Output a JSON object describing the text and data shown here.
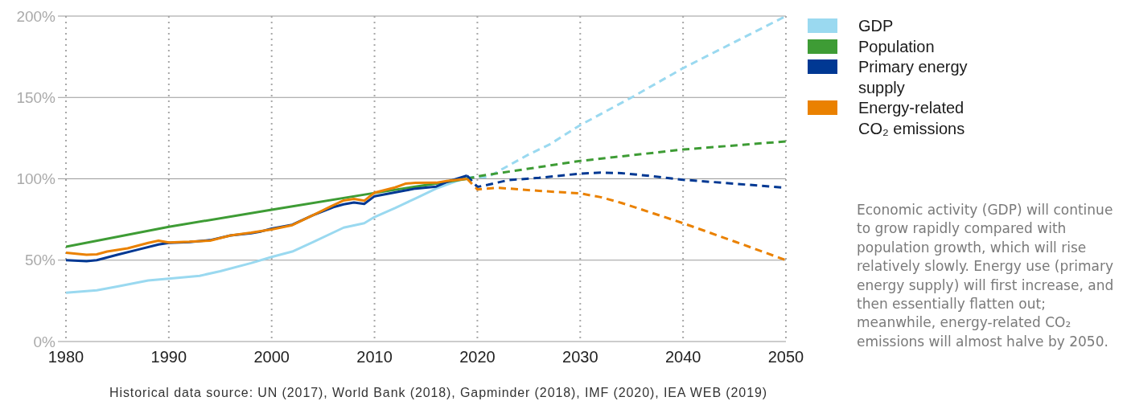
{
  "chart_data": {
    "type": "line",
    "xlim": [
      1980,
      2050
    ],
    "xticks": [
      1980,
      1990,
      2000,
      2010,
      2020,
      2030,
      2040,
      2050
    ],
    "ylim": [
      0,
      200
    ],
    "yticks": [
      {
        "value": 0,
        "label": "0%"
      },
      {
        "value": 50,
        "label": "50%"
      },
      {
        "value": 100,
        "label": "100%"
      },
      {
        "value": 150,
        "label": "150%"
      },
      {
        "value": 200,
        "label": "200%"
      }
    ],
    "grid": true,
    "legend": "top right",
    "series": [
      {
        "name": "GDP",
        "color": "#9ad9f0",
        "x": [
          1980,
          1983,
          1985,
          1988,
          1990,
          1993,
          1995,
          1998,
          2000,
          2002,
          2004,
          2007,
          2009,
          2010,
          2012,
          2014,
          2016,
          2019
        ],
        "values": [
          30,
          31.5,
          33.8,
          37.5,
          38.7,
          40.4,
          43.2,
          48.2,
          52,
          55.3,
          61,
          70,
          72.7,
          76.5,
          82,
          88,
          94,
          101
        ]
      },
      {
        "name": "Population",
        "color": "#3e9c35",
        "x": [
          1980,
          1990,
          2000,
          2010,
          2019
        ],
        "values": [
          58.3,
          70.5,
          81,
          91.3,
          100
        ]
      },
      {
        "name": "Primary energy supply",
        "color": "#003893",
        "x": [
          1980,
          1982,
          1983,
          1985,
          1987,
          1989,
          1990,
          1992,
          1994,
          1996,
          1998,
          1999,
          2000,
          2002,
          2004,
          2006,
          2007,
          2008,
          2009,
          2010,
          2013,
          2014,
          2016,
          2017,
          2019
        ],
        "values": [
          50,
          49.4,
          50,
          53.3,
          56.5,
          59.6,
          60.6,
          61.1,
          62.3,
          65.2,
          66.5,
          67.7,
          69.4,
          71.8,
          77.6,
          82.6,
          84.3,
          85.4,
          84.6,
          89.3,
          92.8,
          94,
          95.2,
          98,
          102
        ]
      },
      {
        "name": "Energy-related CO₂ emissions",
        "color": "#ea8100",
        "x": [
          1980,
          1982,
          1983,
          1984,
          1986,
          1988,
          1989,
          1990,
          1992,
          1994,
          1996,
          1998,
          2000,
          2002,
          2004,
          2006,
          2007,
          2008,
          2009,
          2010,
          2012,
          2013,
          2014,
          2016,
          2017,
          2019
        ],
        "values": [
          54.6,
          53.3,
          53.6,
          55.3,
          57.3,
          60.6,
          62,
          60.9,
          61.3,
          62,
          65.2,
          66.9,
          68.9,
          71.5,
          77.6,
          83.8,
          86.7,
          87.7,
          86.5,
          91.5,
          94.7,
          97,
          97.5,
          97.6,
          98.6,
          100
        ]
      },
      {
        "color": "#9ad9f0",
        "line_style": "dashed",
        "x": [
          2019,
          2021,
          2023,
          2025,
          2027,
          2030,
          2035,
          2040,
          2045,
          2050
        ],
        "values": [
          101,
          101,
          108,
          115,
          121,
          133,
          150,
          168,
          184,
          200
        ]
      },
      {
        "color": "#3e9c35",
        "line_style": "dashed",
        "x": [
          2019,
          2020,
          2030,
          2040,
          2050
        ],
        "values": [
          100,
          101.5,
          111,
          118,
          123
        ]
      },
      {
        "color": "#003893",
        "line_style": "dashed",
        "x": [
          2019,
          2020,
          2021,
          2023,
          2026,
          2030,
          2032,
          2034,
          2037,
          2040,
          2045,
          2050
        ],
        "values": [
          102,
          95,
          96.3,
          99.2,
          100.6,
          103.2,
          103.8,
          103.5,
          101.6,
          99.4,
          97,
          94.5
        ]
      },
      {
        "color": "#ea8100",
        "line_style": "dashed",
        "x": [
          2019,
          2020,
          2022,
          2026,
          2030,
          2032,
          2034,
          2037,
          2040,
          2045,
          2050
        ],
        "values": [
          100,
          93.5,
          94.5,
          92.6,
          91,
          88.7,
          85.2,
          79,
          72.7,
          61.5,
          50
        ]
      }
    ],
    "annotations": [
      "Economic activity (GDP) will continue to grow rapidly compared with population growth, which will rise relatively slowly. Energy use (primary energy supply) will first increase, and then essentially flatten out; meanwhile, energy-related CO₂ emissions will almost halve by 2050.",
      "Historical data source: UN (2017), World Bank (2018), Gapminder (2018), IMF (2020), IEA WEB (2019)"
    ]
  }
}
